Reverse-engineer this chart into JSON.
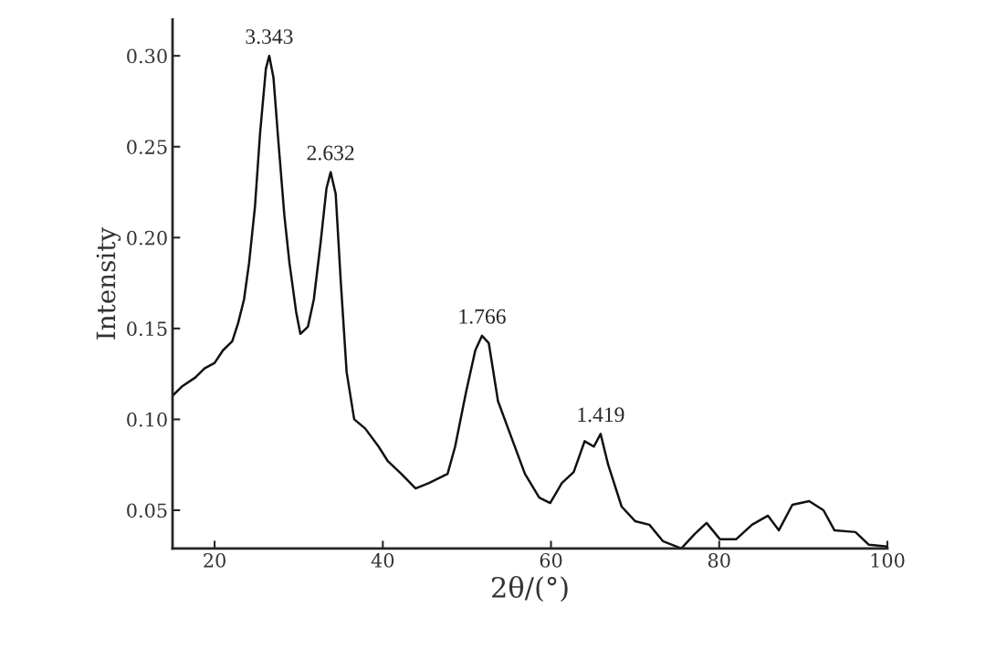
{
  "chart_data": {
    "type": "line",
    "xlabel": "2θ/(°)",
    "ylabel": "Intensity",
    "x": [
      15,
      16.1,
      17.7,
      18.8,
      20,
      21,
      22.1,
      22.8,
      23.5,
      24.1,
      24.8,
      25.4,
      26.1,
      26.5,
      27.0,
      27.6,
      28.3,
      28.9,
      29.7,
      30.2,
      31.1,
      31.8,
      32.6,
      33.3,
      33.8,
      34.4,
      35.0,
      35.7,
      36.6,
      37.9,
      39.5,
      40.6,
      42.2,
      43.9,
      45.5,
      47.7,
      48.6,
      49.9,
      51.0,
      51.8,
      52.6,
      53.7,
      55.3,
      56.9,
      58.6,
      59.9,
      61.3,
      62.7,
      64.0,
      65.1,
      65.9,
      66.8,
      68.4,
      70.0,
      71.7,
      73.3,
      75.5,
      77.1,
      78.5,
      80.1,
      82.0,
      83.9,
      85.8,
      87.1,
      88.7,
      90.7,
      92.4,
      93.7,
      96.2,
      97.8,
      100
    ],
    "series": [
      {
        "color": "#111111",
        "values": [
          0.113,
          0.118,
          0.123,
          0.128,
          0.131,
          0.138,
          0.143,
          0.153,
          0.166,
          0.186,
          0.217,
          0.257,
          0.293,
          0.3,
          0.288,
          0.252,
          0.212,
          0.186,
          0.159,
          0.147,
          0.151,
          0.166,
          0.197,
          0.227,
          0.236,
          0.224,
          0.176,
          0.126,
          0.1,
          0.095,
          0.085,
          0.077,
          0.07,
          0.062,
          0.065,
          0.07,
          0.085,
          0.115,
          0.138,
          0.146,
          0.142,
          0.11,
          0.09,
          0.07,
          0.057,
          0.054,
          0.065,
          0.071,
          0.088,
          0.085,
          0.092,
          0.075,
          0.052,
          0.044,
          0.042,
          0.033,
          0.029,
          0.037,
          0.043,
          0.034,
          0.034,
          0.042,
          0.047,
          0.039,
          0.053,
          0.055,
          0.05,
          0.039,
          0.038,
          0.031,
          0.03
        ]
      }
    ],
    "xlim": [
      15,
      100
    ],
    "ylim": [
      0.029,
      0.32
    ],
    "xticks": [
      20,
      40,
      60,
      80,
      100
    ],
    "yticks": [
      {
        "value": 0.05,
        "label": "0.05"
      },
      {
        "value": 0.1,
        "label": "0.10"
      },
      {
        "value": 0.15,
        "label": "0.15"
      },
      {
        "value": 0.2,
        "label": "0.20"
      },
      {
        "value": 0.25,
        "label": "0.25"
      },
      {
        "value": 0.3,
        "label": "0.30"
      }
    ],
    "annotations": [
      {
        "text": "3.343",
        "x": 26.5,
        "y": 0.3
      },
      {
        "text": "2.632",
        "x": 33.8,
        "y": 0.236
      },
      {
        "text": "1.766",
        "x": 51.8,
        "y": 0.146
      },
      {
        "text": "1.419",
        "x": 65.9,
        "y": 0.092
      }
    ],
    "grid": false,
    "legend": false,
    "marker": "none",
    "line_style": "solid"
  }
}
